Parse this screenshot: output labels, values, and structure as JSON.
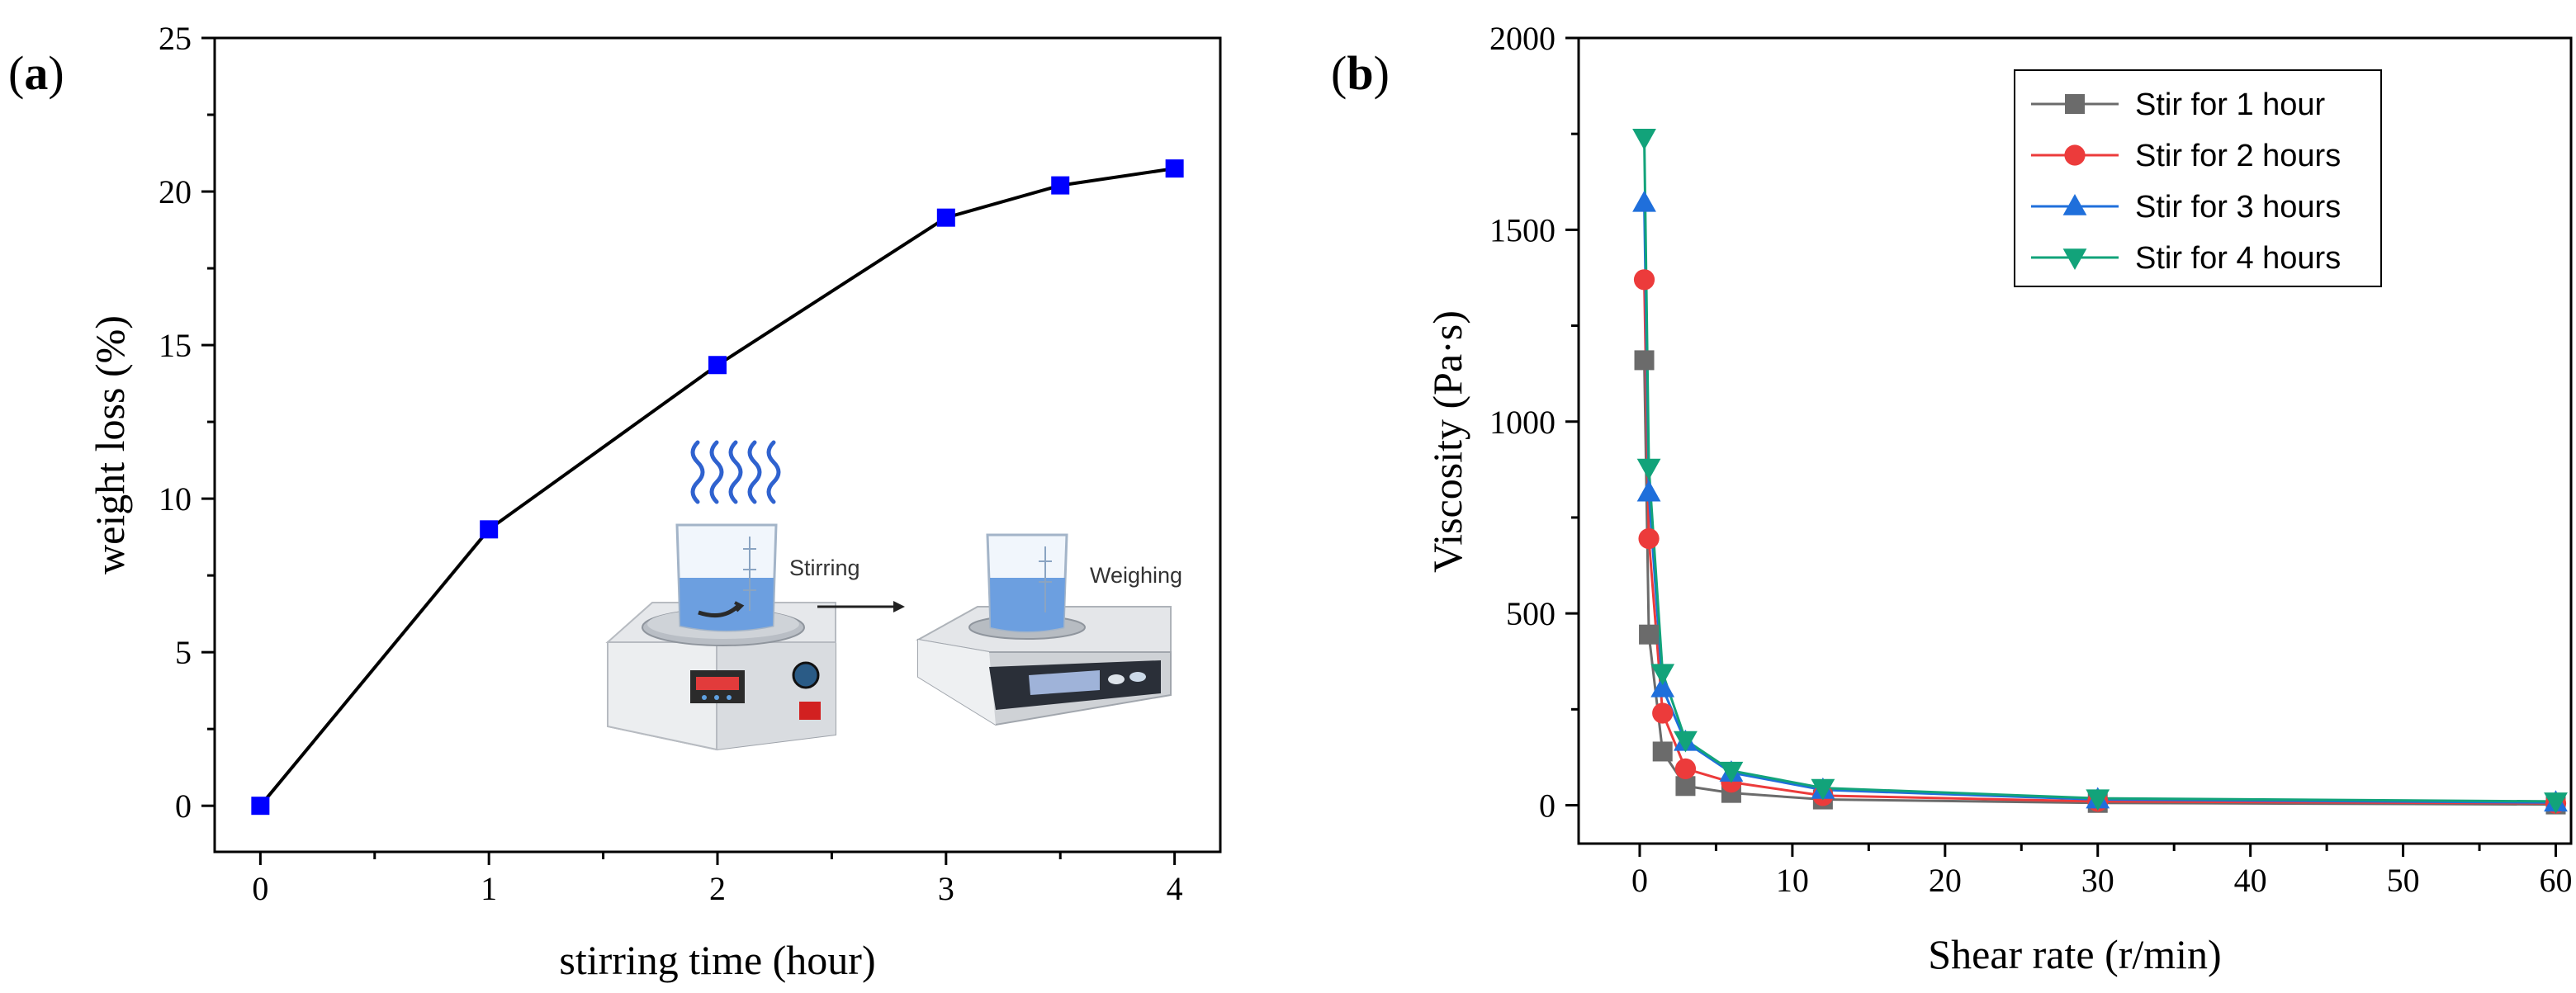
{
  "figure": {
    "panel_a_open": "(",
    "panel_a_letter": "a",
    "panel_a_close": ")",
    "panel_b_open": "(",
    "panel_b_letter": "b",
    "panel_b_close": ")"
  },
  "inset": {
    "stirring_label": "Stirring",
    "weighing_label": "Weighing",
    "arrow_icon": "right-arrow-icon",
    "stirrer_icon": "magnetic-stirrer-icon",
    "balance_icon": "analytical-balance-icon",
    "colors": {
      "device_body": "#dfe2e6",
      "liquid": "#6c9fe0",
      "display": "#e23b3b",
      "steam": "#2f62cf"
    }
  },
  "chart_data": [
    {
      "type": "line",
      "panel": "a",
      "title": "",
      "xlabel": "stirring time (hour)",
      "ylabel": "weight loss (%)",
      "xlim": [
        -0.2,
        4.2
      ],
      "ylim": [
        -1.5,
        25
      ],
      "xticks": [
        0,
        1,
        2,
        3,
        4
      ],
      "xtick_labels": [
        "0",
        "1",
        "2",
        "3",
        "4"
      ],
      "yticks": [
        0,
        5,
        10,
        15,
        20,
        25
      ],
      "ytick_labels": [
        "0",
        "5",
        "10",
        "15",
        "20",
        "25"
      ],
      "grid": false,
      "series": [
        {
          "name": "weight loss",
          "color": "#0000ff",
          "line_color": "#000000",
          "marker": "square",
          "x": [
            0,
            1,
            2,
            3,
            3.5,
            4
          ],
          "y": [
            0,
            9.0,
            14.35,
            19.15,
            20.2,
            20.75
          ]
        }
      ]
    },
    {
      "type": "line",
      "panel": "b",
      "title": "",
      "xlabel": "Shear rate (r/min)",
      "ylabel": "Viscosity (Pa·s)",
      "xlim": [
        -4,
        61
      ],
      "ylim": [
        -100,
        2000
      ],
      "xticks": [
        0,
        10,
        20,
        30,
        40,
        50,
        60
      ],
      "xtick_labels": [
        "0",
        "10",
        "20",
        "30",
        "40",
        "50",
        "60"
      ],
      "yticks": [
        0,
        500,
        1000,
        1500,
        2000
      ],
      "ytick_labels": [
        "0",
        "500",
        "1000",
        "1500",
        "2000"
      ],
      "grid": false,
      "legend_position": "top-right",
      "series": [
        {
          "name": "Stir for 1 hour",
          "color": "#6b6b6b",
          "marker": "square",
          "x": [
            0.3,
            0.6,
            1.5,
            3,
            6,
            12,
            30,
            60
          ],
          "y": [
            1160,
            445,
            140,
            50,
            32,
            15,
            6,
            2
          ]
        },
        {
          "name": "Stir for 2 hours",
          "color": "#ec3b3b",
          "marker": "circle",
          "x": [
            0.3,
            0.6,
            1.5,
            3,
            6,
            12,
            30,
            60
          ],
          "y": [
            1370,
            695,
            240,
            95,
            60,
            25,
            10,
            5
          ]
        },
        {
          "name": "Stir for 3 hours",
          "color": "#1f6fdb",
          "marker": "triangle-up",
          "x": [
            0.3,
            0.6,
            1.5,
            3,
            6,
            12,
            30,
            60
          ],
          "y": [
            1570,
            815,
            305,
            165,
            85,
            40,
            15,
            7
          ]
        },
        {
          "name": "Stir for 4 hours",
          "color": "#12a37a",
          "marker": "triangle-down",
          "x": [
            0.3,
            0.6,
            1.5,
            3,
            6,
            12,
            30,
            60
          ],
          "y": [
            1740,
            880,
            345,
            170,
            90,
            45,
            18,
            10
          ]
        }
      ]
    }
  ]
}
